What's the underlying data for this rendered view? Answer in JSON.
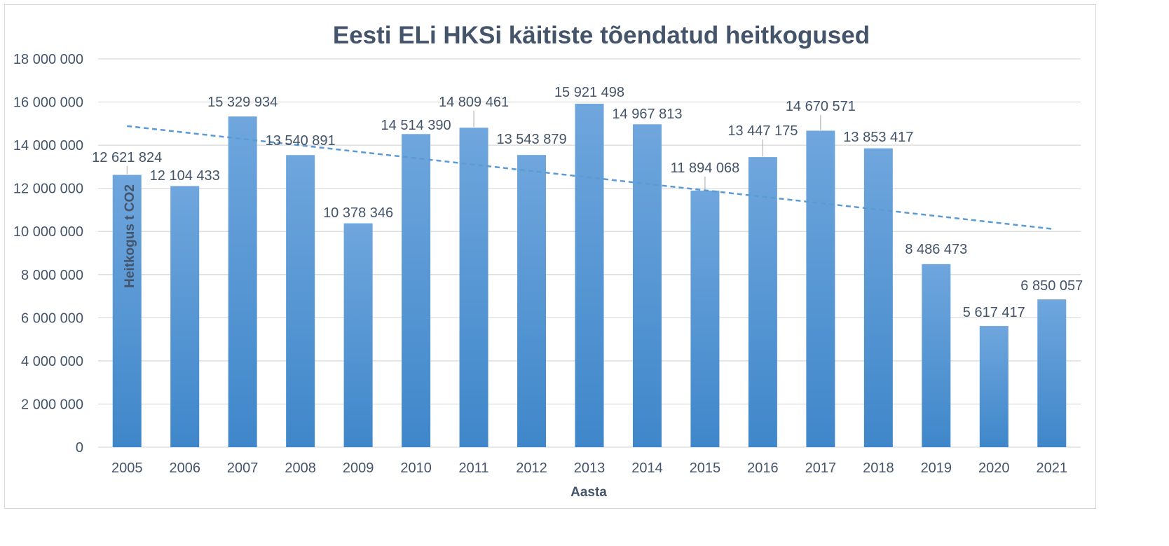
{
  "chart_data": {
    "type": "bar",
    "title": "Eesti ELi HKSi käitiste tõendatud heitkogused",
    "xlabel": "Aasta",
    "ylabel": "Heitkogus t CO2",
    "categories": [
      "2005",
      "2006",
      "2007",
      "2008",
      "2009",
      "2010",
      "2011",
      "2012",
      "2013",
      "2014",
      "2015",
      "2016",
      "2017",
      "2018",
      "2019",
      "2020",
      "2021"
    ],
    "values": [
      12621824,
      12104433,
      15329934,
      13540891,
      10378346,
      14514390,
      14809461,
      13543879,
      15921498,
      14967813,
      11894068,
      13447175,
      14670571,
      13853417,
      8486473,
      5617417,
      6850057
    ],
    "value_labels": [
      "12 621 824",
      "12 104 433",
      "15 329 934",
      "13 540 891",
      "10 378 346",
      "14 514 390",
      "14 809 461",
      "13 543 879",
      "15 921 498",
      "14 967 813",
      "11 894 068",
      "13 447 175",
      "14 670 571",
      "13 853 417",
      "8 486 473",
      "5 617 417",
      "6 850 057"
    ],
    "yticks": [
      0,
      2000000,
      4000000,
      6000000,
      8000000,
      10000000,
      12000000,
      14000000,
      16000000,
      18000000
    ],
    "ytick_labels": [
      "0",
      "2 000 000",
      "4 000 000",
      "6 000 000",
      "8 000 000",
      "10 000 000",
      "12 000 000",
      "14 000 000",
      "16 000 000",
      "18 000 000"
    ],
    "ylim": [
      0,
      18000000
    ],
    "trendline": {
      "type": "linear",
      "style": "dashed"
    },
    "grid": true,
    "legend": "none",
    "colors": {
      "bar_top": "#6fa6dd",
      "bar_bottom": "#3f87ca",
      "trend": "#5b9bd5",
      "text": "#44546a",
      "grid": "#d9d9d9"
    }
  }
}
